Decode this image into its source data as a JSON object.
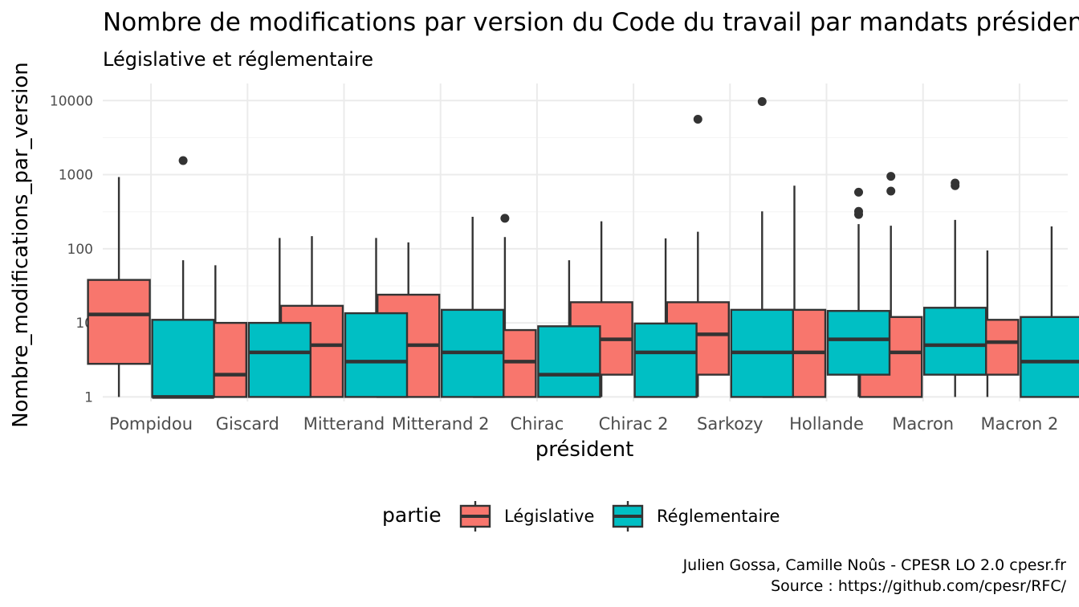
{
  "chart_data": {
    "type": "boxplot",
    "title": "Nombre de modifications par version du Code du travail par mandats présidentiels",
    "subtitle": "Législative et réglementaire",
    "xlabel": "président",
    "ylabel": "Nombre_modifications_par_version",
    "yscale": "log10",
    "ylim": [
      0.87,
      17000
    ],
    "y_ticks": [
      1,
      10,
      100,
      1000,
      10000
    ],
    "y_tick_labels": [
      "1",
      "10",
      "100",
      "1000",
      "10000"
    ],
    "categories": [
      "Pompidou",
      "Giscard",
      "Mitterand",
      "Mitterand 2",
      "Chirac",
      "Chirac 2",
      "Sarkozy",
      "Hollande",
      "Macron",
      "Macron 2"
    ],
    "grid": true,
    "legend": {
      "title": "partie",
      "position": "bottom",
      "entries": [
        "Législative",
        "Réglementaire"
      ]
    },
    "series": [
      {
        "name": "Législative",
        "color": "#F8766D",
        "boxes": [
          {
            "min": 1,
            "q1": 2.8,
            "median": 13,
            "q3": 38,
            "max": 930,
            "outliers": []
          },
          {
            "min": 1,
            "q1": 1,
            "median": 2,
            "q3": 10,
            "max": 60,
            "outliers": []
          },
          {
            "min": 1,
            "q1": 1,
            "median": 5,
            "q3": 17,
            "max": 148,
            "outliers": []
          },
          {
            "min": 1,
            "q1": 1,
            "median": 5,
            "q3": 24,
            "max": 122,
            "outliers": []
          },
          {
            "min": 1,
            "q1": 1,
            "median": 3,
            "q3": 8,
            "max": 144,
            "outliers": [
              258
            ]
          },
          {
            "min": 1,
            "q1": 2,
            "median": 6,
            "q3": 19,
            "max": 235,
            "outliers": []
          },
          {
            "min": 1,
            "q1": 2,
            "median": 7,
            "q3": 19,
            "max": 170,
            "outliers": [
              5600
            ]
          },
          {
            "min": 1,
            "q1": 1,
            "median": 4,
            "q3": 15,
            "max": 710,
            "outliers": []
          },
          {
            "min": 1,
            "q1": 1,
            "median": 4,
            "q3": 12,
            "max": 205,
            "outliers": [
              600,
              950
            ]
          },
          {
            "min": 1,
            "q1": 2,
            "median": 5.5,
            "q3": 11,
            "max": 95,
            "outliers": []
          }
        ]
      },
      {
        "name": "Réglementaire",
        "color": "#00BFC4",
        "boxes": [
          {
            "min": 1,
            "q1": 1,
            "median": 1,
            "q3": 11,
            "max": 70,
            "outliers": [
              1550
            ]
          },
          {
            "min": 1,
            "q1": 1,
            "median": 4,
            "q3": 10,
            "max": 140,
            "outliers": []
          },
          {
            "min": 1,
            "q1": 1,
            "median": 3,
            "q3": 13.5,
            "max": 140,
            "outliers": []
          },
          {
            "min": 1,
            "q1": 1,
            "median": 4,
            "q3": 15,
            "max": 270,
            "outliers": []
          },
          {
            "min": 1,
            "q1": 1,
            "median": 2,
            "q3": 9,
            "max": 70,
            "outliers": []
          },
          {
            "min": 1,
            "q1": 1,
            "median": 4,
            "q3": 9.8,
            "max": 138,
            "outliers": []
          },
          {
            "min": 1,
            "q1": 1,
            "median": 4,
            "q3": 15,
            "max": 320,
            "outliers": [
              9700
            ]
          },
          {
            "min": 1,
            "q1": 2,
            "median": 6,
            "q3": 14.5,
            "max": 215,
            "outliers": [
              290,
              320,
              580
            ]
          },
          {
            "min": 1,
            "q1": 2,
            "median": 5,
            "q3": 16,
            "max": 245,
            "outliers": [
              710,
              770
            ]
          },
          {
            "min": 1,
            "q1": 1,
            "median": 3,
            "q3": 12,
            "max": 200,
            "outliers": []
          }
        ]
      }
    ]
  },
  "caption": {
    "line1": "Julien Gossa, Camille Noûs - CPESR LO 2.0 cpesr.fr",
    "line2": "Source : https://github.com/cpesr/RFC/"
  }
}
